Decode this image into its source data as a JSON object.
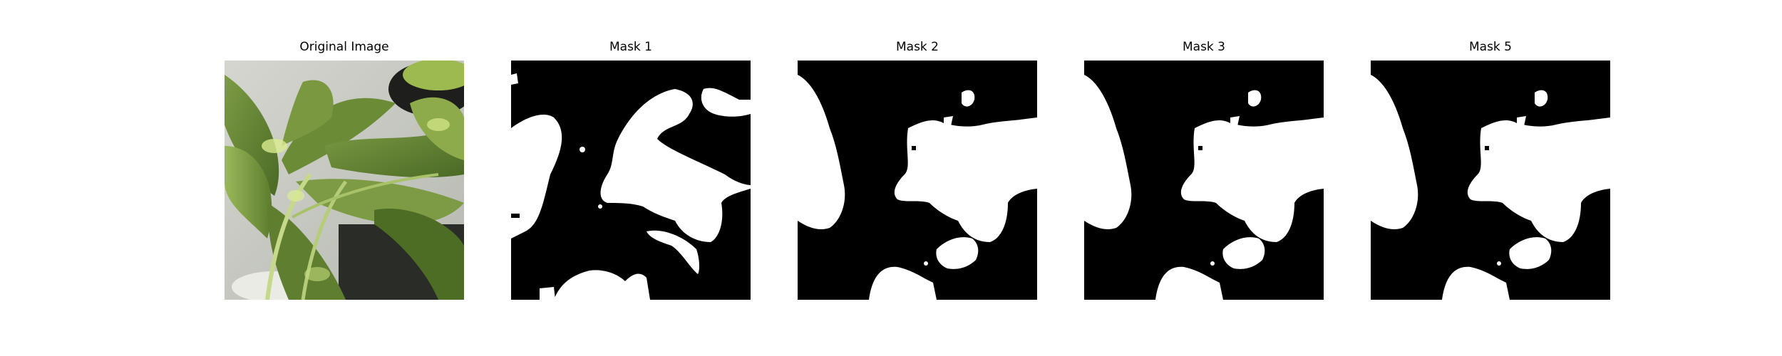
{
  "panels": [
    {
      "title": "Original Image"
    },
    {
      "title": "Mask 1"
    },
    {
      "title": "Mask 2"
    },
    {
      "title": "Mask 3"
    },
    {
      "title": "Mask 5"
    }
  ],
  "colors": {
    "mask_foreground": "#ffffff",
    "mask_background": "#000000",
    "leaf_dark": "#3f5a1e",
    "leaf_mid": "#6f8e3a",
    "leaf_light": "#b9cf6e",
    "background_wall": "#c9ccc4"
  }
}
